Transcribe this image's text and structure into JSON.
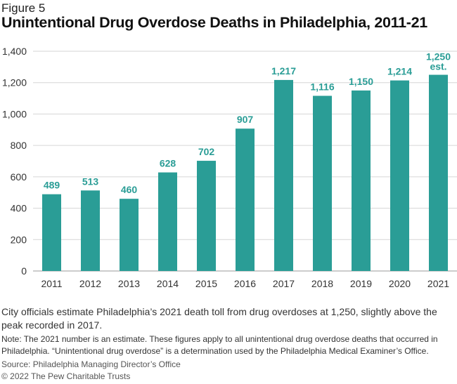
{
  "figure_label": "Figure 5",
  "chart_data": {
    "type": "bar",
    "title": "Unintentional Drug Overdose Deaths in Philadelphia, 2011-21",
    "categories": [
      "2011",
      "2012",
      "2013",
      "2014",
      "2015",
      "2016",
      "2017",
      "2018",
      "2019",
      "2020",
      "2021"
    ],
    "values": [
      489,
      513,
      460,
      628,
      702,
      907,
      1217,
      1116,
      1150,
      1214,
      1250
    ],
    "data_labels": [
      "489",
      "513",
      "460",
      "628",
      "702",
      "907",
      "1,217",
      "1,116",
      "1,150",
      "1,214",
      "1,250"
    ],
    "annotation_2021": "est.",
    "xlabel": "",
    "ylabel": "",
    "ylim": [
      0,
      1400
    ],
    "yticks": [
      0,
      200,
      400,
      600,
      800,
      1000,
      1200,
      1400
    ],
    "ytick_labels": [
      "0",
      "200",
      "400",
      "600",
      "800",
      "1,000",
      "1,200",
      "1,400"
    ],
    "grid": true,
    "bar_color": "#2a9d96",
    "label_color": "#2a9d96"
  },
  "caption": "City officials estimate Philadelphia’s 2021 death toll from drug overdoses at 1,250, slightly above the peak recorded in 2017.",
  "note": "Note: The 2021 number is an estimate. These figures apply to all unintentional drug overdose deaths that occurred in Philadelphia. “Unintentional drug overdose” is a determination used by the Philadelphia Medical Examiner’s Office.",
  "source": "Source: Philadelphia Managing Director’s Office",
  "copyright": "© 2022 The Pew Charitable Trusts"
}
